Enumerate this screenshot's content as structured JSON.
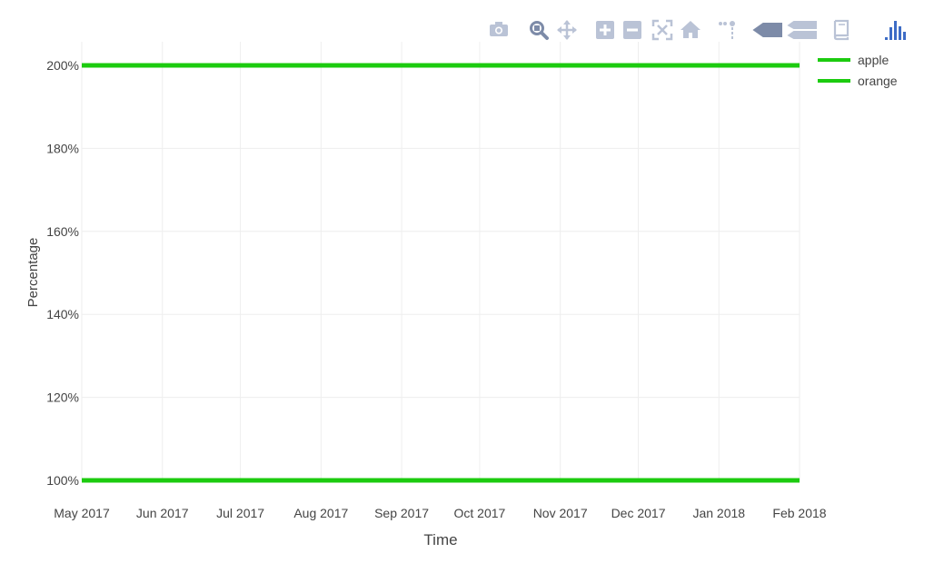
{
  "colors": {
    "accent": "#1ccb0f",
    "grid": "#eeeeee",
    "text": "#444444",
    "modebar_icon": "#bac3d6",
    "modebar_active": "#7d8ba8",
    "plotly_logo": "#3d6cc6"
  },
  "modebar": {
    "buttons": [
      {
        "icon": "camera-icon"
      },
      {
        "icon": "zoom-icon"
      },
      {
        "icon": "pan-icon"
      },
      {
        "icon": "zoom-in-icon"
      },
      {
        "icon": "zoom-out-icon"
      },
      {
        "icon": "autoscale-icon"
      },
      {
        "icon": "reset-axes-icon"
      },
      {
        "icon": "spike-lines-icon"
      },
      {
        "icon": "hover-closest-icon"
      },
      {
        "icon": "hover-compare-icon"
      },
      {
        "icon": "edit-chart-icon"
      },
      {
        "icon": "plotly-logo-icon"
      }
    ]
  },
  "chart_data": {
    "type": "line",
    "xlabel": "Time",
    "ylabel": "Percentage",
    "x_ticks": [
      "May 2017",
      "Jun 2017",
      "Jul 2017",
      "Aug 2017",
      "Sep 2017",
      "Oct 2017",
      "Nov 2017",
      "Dec 2017",
      "Jan 2018",
      "Feb 2018"
    ],
    "y_ticks": [
      "100%",
      "120%",
      "140%",
      "160%",
      "180%",
      "200%"
    ],
    "ylim": [
      100,
      200
    ],
    "xlim": [
      "2017-05-01",
      "2018-02-01"
    ],
    "grid": true,
    "legend_position": "top-right",
    "series": [
      {
        "name": "apple",
        "color": "#1ccb0f",
        "x": [
          "2017-05-01",
          "2018-02-01"
        ],
        "y": [
          200,
          200
        ]
      },
      {
        "name": "orange",
        "color": "#1ccb0f",
        "x": [
          "2017-05-01",
          "2018-02-01"
        ],
        "y": [
          100,
          100
        ]
      }
    ]
  }
}
